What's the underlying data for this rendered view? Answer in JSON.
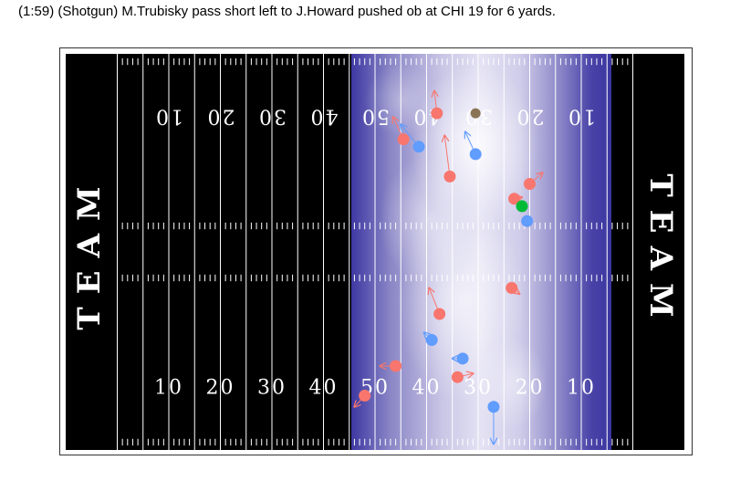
{
  "title": "(1:59) (Shotgun) M.Trubisky pass short left to J.Howard pushed ob at CHI 19 for 6 yards.",
  "endzones": {
    "left": "TEAM",
    "right": "TEAM"
  },
  "yard_numbers": [
    "10",
    "20",
    "30",
    "40",
    "50",
    "40",
    "30",
    "20",
    "10"
  ],
  "colors": {
    "field": "#000000",
    "lines": "#ffffff",
    "heat_low": "#3a35a0",
    "heat_high": "#f4f2fb",
    "offense": "#f8766d",
    "defense": "#619cff",
    "ball_carrier": "#00ba38",
    "football": "#8b7355"
  },
  "players": [
    {
      "team": "offense",
      "x": 76,
      "y": 43.5,
      "dx": 3,
      "dy": -0.5
    },
    {
      "team": "offense",
      "x": 64,
      "y": 42.0,
      "dx": -3,
      "dy": 0
    },
    {
      "team": "offense",
      "x": 58,
      "y": 46.0,
      "dx": -2,
      "dy": 1.5
    },
    {
      "team": "offense",
      "x": 86.5,
      "y": 31.5,
      "dx": 1.5,
      "dy": 0.8
    },
    {
      "team": "offense",
      "x": 87,
      "y": 19.5,
      "dx": 1.5,
      "dy": -0.2
    },
    {
      "team": "offense",
      "x": 90,
      "y": 17.5,
      "dx": 2.5,
      "dy": -1.5
    },
    {
      "team": "offense",
      "x": 74.5,
      "y": 16.5,
      "dx": -1,
      "dy": -5.5
    },
    {
      "team": "offense",
      "x": 72.5,
      "y": 35.0,
      "dx": -2,
      "dy": -3.5
    },
    {
      "team": "offense",
      "x": 65.5,
      "y": 11.5,
      "dx": -2,
      "dy": -3
    },
    {
      "team": "offense",
      "x": 72,
      "y": 8.0,
      "dx": -0.5,
      "dy": -3
    },
    {
      "team": "defense",
      "x": 77,
      "y": 41.0,
      "dx": -2,
      "dy": 0
    },
    {
      "team": "defense",
      "x": 71,
      "y": 38.5,
      "dx": -1.5,
      "dy": -1
    },
    {
      "team": "defense",
      "x": 83,
      "y": 47.5,
      "dx": 0,
      "dy": 5
    },
    {
      "team": "defense",
      "x": 89.5,
      "y": 22.5,
      "dx": -1,
      "dy": 0
    },
    {
      "team": "defense",
      "x": 68.5,
      "y": 12.5,
      "dx": -3.5,
      "dy": -3
    },
    {
      "team": "defense",
      "x": 79.5,
      "y": 13.5,
      "dx": -2,
      "dy": -3
    }
  ],
  "ball_carrier": {
    "x": 88.5,
    "y": 20.5
  },
  "football": {
    "x": 79.5,
    "y": 8.0
  }
}
